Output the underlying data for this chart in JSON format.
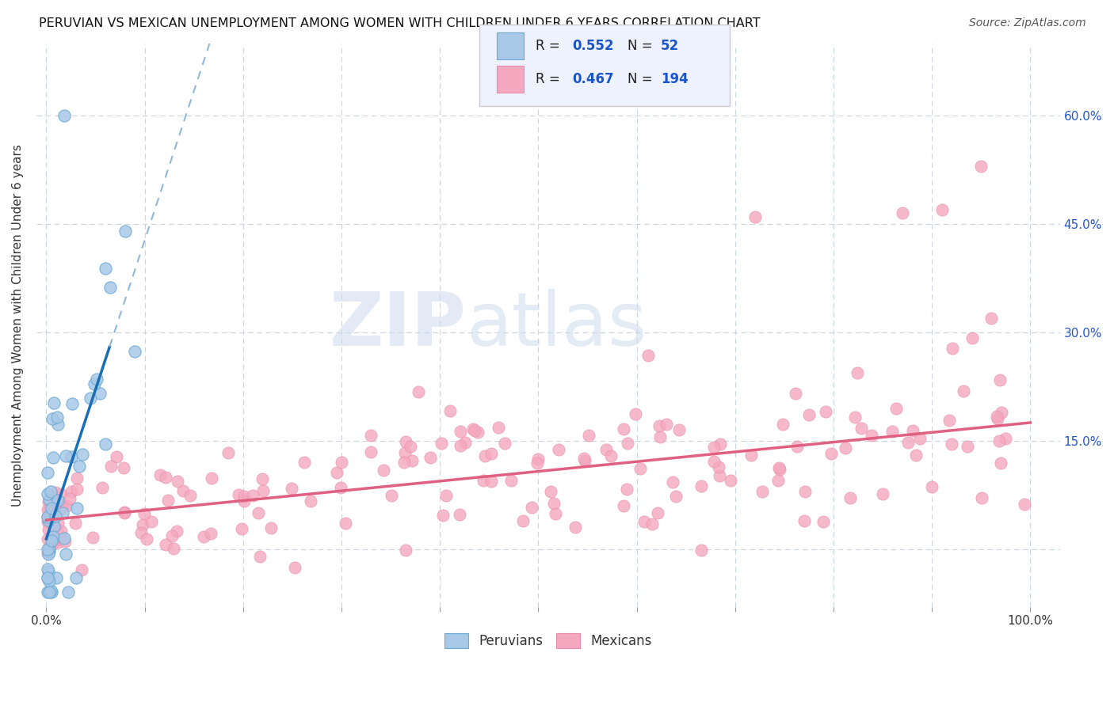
{
  "title": "PERUVIAN VS MEXICAN UNEMPLOYMENT AMONG WOMEN WITH CHILDREN UNDER 6 YEARS CORRELATION CHART",
  "source": "Source: ZipAtlas.com",
  "ylabel": "Unemployment Among Women with Children Under 6 years",
  "legend_peruvian": "Peruvians",
  "legend_mexican": "Mexicans",
  "R_peruvian": 0.552,
  "N_peruvian": 52,
  "R_mexican": 0.467,
  "N_mexican": 194,
  "peruvian_scatter_color": "#a8c8e8",
  "peruvian_edge_color": "#6aaad4",
  "peruvian_line_color": "#1a6eb5",
  "peruvian_dash_color": "#90b8d8",
  "mexican_scatter_color": "#f4a8c0",
  "mexican_edge_color": "#e88aaa",
  "mexican_line_color": "#e06080",
  "watermark_zip": "ZIP",
  "watermark_atlas": "atlas",
  "xlim_min": -0.01,
  "xlim_max": 1.03,
  "ylim_min": -0.08,
  "ylim_max": 0.7,
  "yticks": [
    0.0,
    0.15,
    0.3,
    0.45,
    0.6
  ],
  "ytick_labels": [
    "",
    "15.0%",
    "30.0%",
    "45.0%",
    "60.0%"
  ],
  "xtick_labels": [
    "0.0%",
    "",
    "",
    "",
    "",
    "",
    "",
    "",
    "",
    "",
    "100.0%"
  ],
  "legend_facecolor": "#eef2ff",
  "legend_edgecolor": "#cccccc"
}
